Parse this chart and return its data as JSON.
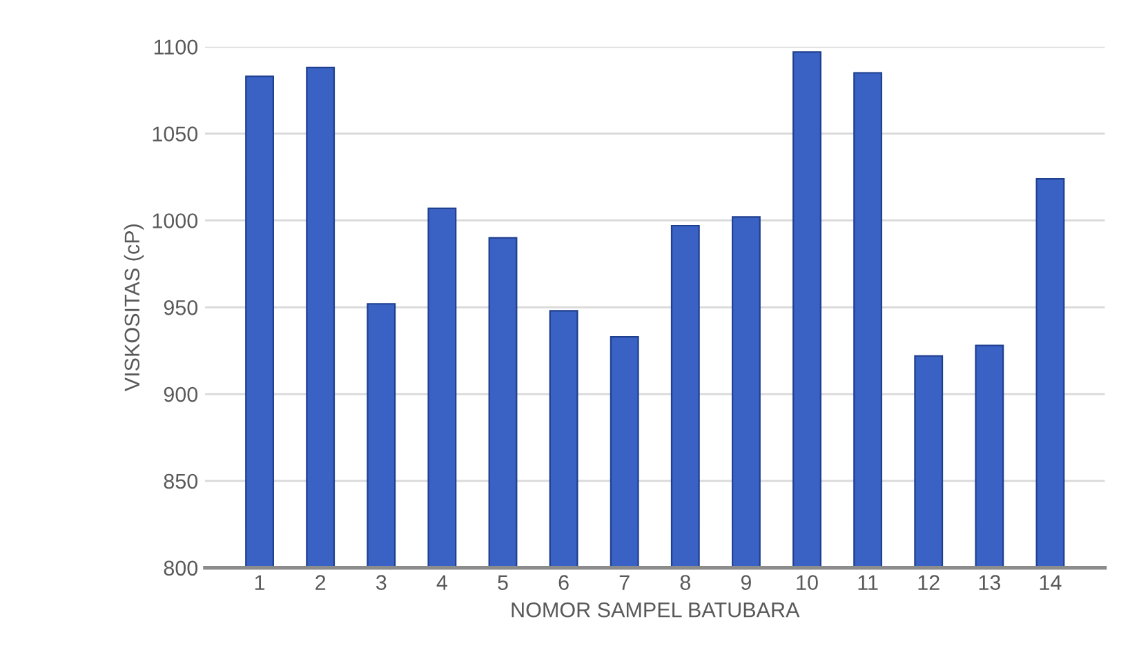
{
  "chart_data": {
    "type": "bar",
    "xlabel": "NOMOR SAMPEL BATUBARA",
    "ylabel": "VISKOSITAS (cP)",
    "categories": [
      "1",
      "2",
      "3",
      "4",
      "5",
      "6",
      "7",
      "8",
      "9",
      "10",
      "11",
      "12",
      "13",
      "14"
    ],
    "values": [
      1083,
      1088,
      952,
      1007,
      990,
      948,
      933,
      997,
      1002,
      1097,
      1085,
      922,
      928,
      1024
    ],
    "color": "#3a62c4",
    "ylim": [
      800,
      1100
    ],
    "yticks": [
      800,
      850,
      900,
      950,
      1000,
      1050,
      1100
    ],
    "grid": "y",
    "legend": false
  }
}
